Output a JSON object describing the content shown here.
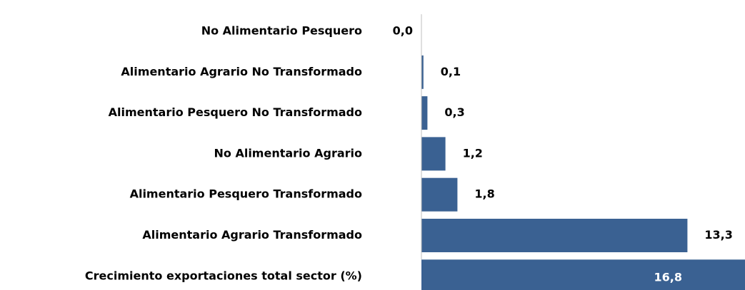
{
  "chart_data": {
    "type": "bar",
    "orientation": "horizontal",
    "categories": [
      "No Alimentario Pesquero",
      "Alimentario Agrario No Transformado",
      "Alimentario Pesquero No Transformado",
      "No Alimentario Agrario",
      "Alimentario Pesquero Transformado",
      "Alimentario Agrario Transformado",
      "Crecimiento exportaciones total sector (%)"
    ],
    "values": [
      0.0,
      0.1,
      0.3,
      1.2,
      1.8,
      13.3,
      16.8
    ],
    "value_labels": [
      "0,0",
      "0,1",
      "0,3",
      "1,2",
      "1,8",
      "13,3",
      "16,8"
    ],
    "color": "#3a6192"
  }
}
